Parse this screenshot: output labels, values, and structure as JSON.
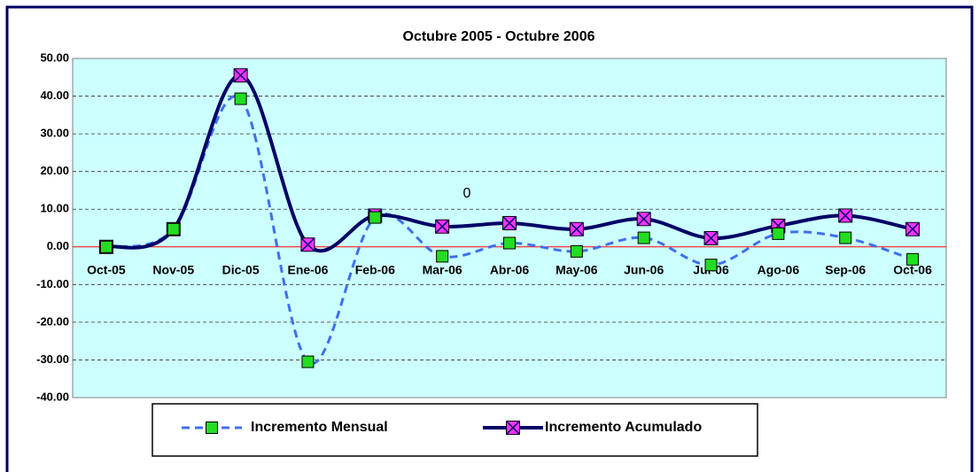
{
  "chart_data": {
    "type": "line",
    "title": "Octubre 2005 - Octubre 2006",
    "annotation": "0",
    "categories": [
      "Oct-05",
      "Nov-05",
      "Dic-05",
      "Ene-06",
      "Feb-06",
      "Mar-06",
      "Abr-06",
      "May-06",
      "Jun-06",
      "Jul-06",
      "Ago-06",
      "Sep-06",
      "Oct-06"
    ],
    "series": [
      {
        "name": "Incremento Mensual",
        "color": "#3f6ff0",
        "marker_color": "#22dd22",
        "dashed": true,
        "values": [
          0,
          4.7,
          39.3,
          -30.5,
          7.8,
          -2.5,
          1.0,
          -1.2,
          2.4,
          -4.8,
          3.5,
          2.4,
          -3.3
        ]
      },
      {
        "name": "Incremento Acumulado",
        "color": "#000066",
        "marker_color": "#ff33ff",
        "dashed": false,
        "values": [
          0,
          4.7,
          45.5,
          0.6,
          8.3,
          5.4,
          6.3,
          4.7,
          7.4,
          2.3,
          5.6,
          8.3,
          4.7
        ]
      }
    ],
    "ylim": [
      -40,
      50
    ],
    "yticks": [
      {
        "value": 50,
        "label": "50.00"
      },
      {
        "value": 40,
        "label": "40.00"
      },
      {
        "value": 30,
        "label": "30.00"
      },
      {
        "value": 20,
        "label": "20.00"
      },
      {
        "value": 10,
        "label": "10.00"
      },
      {
        "value": 0,
        "label": "0.00"
      },
      {
        "value": -10,
        "label": "-10.00"
      },
      {
        "value": -20,
        "label": "-20.00"
      },
      {
        "value": -30,
        "label": "-30.00"
      },
      {
        "value": -40,
        "label": "-40.00"
      }
    ],
    "grid": true
  }
}
